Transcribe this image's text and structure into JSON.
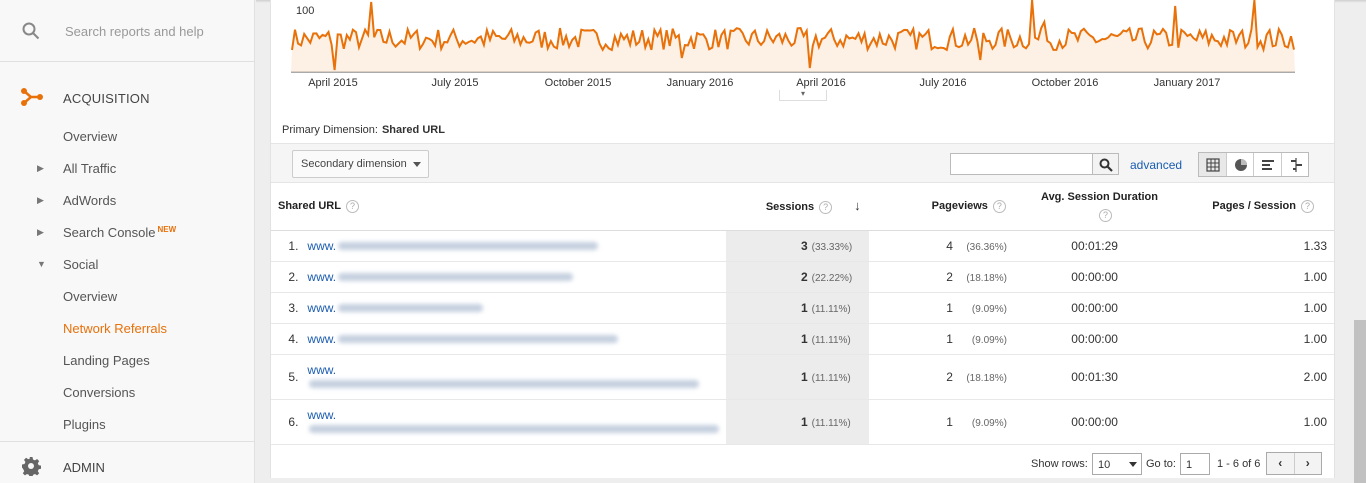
{
  "sidebar": {
    "search_placeholder": "Search reports and help",
    "section_title": "ACQUISITION",
    "items": [
      {
        "label": "Overview"
      },
      {
        "label": "All Traffic"
      },
      {
        "label": "AdWords"
      },
      {
        "label": "Search Console",
        "badge": "NEW"
      },
      {
        "label": "Social"
      },
      {
        "label": "Overview"
      },
      {
        "label": "Network Referrals"
      },
      {
        "label": "Landing Pages"
      },
      {
        "label": "Conversions"
      },
      {
        "label": "Plugins"
      }
    ],
    "admin_label": "ADMIN"
  },
  "chart_data": {
    "type": "line",
    "ytick": "100",
    "xticks": [
      "April 2015",
      "July 2015",
      "October 2015",
      "January 2016",
      "April 2016",
      "July 2016",
      "October 2016",
      "January 2017"
    ],
    "color": "#e8710a"
  },
  "report": {
    "primary_dimension_label": "Primary Dimension:",
    "primary_dimension_value": "Shared URL",
    "secondary_dimension_label": "Secondary dimension",
    "advanced_label": "advanced",
    "columns": {
      "url": "Shared URL",
      "sessions": "Sessions",
      "pageviews": "Pageviews",
      "duration": "Avg. Session Duration",
      "pages_per_session": "Pages / Session"
    },
    "help_glyph": "?",
    "rows": [
      {
        "idx": "1.",
        "url": "www.",
        "sessions": "3",
        "sessions_pct": "(33.33%)",
        "pageviews": "4",
        "pageviews_pct": "(36.36%)",
        "duration": "00:01:29",
        "pps": "1.33"
      },
      {
        "idx": "2.",
        "url": "www.",
        "sessions": "2",
        "sessions_pct": "(22.22%)",
        "pageviews": "2",
        "pageviews_pct": "(18.18%)",
        "duration": "00:00:00",
        "pps": "1.00"
      },
      {
        "idx": "3.",
        "url": "www.",
        "sessions": "1",
        "sessions_pct": "(11.11%)",
        "pageviews": "1",
        "pageviews_pct": "(9.09%)",
        "duration": "00:00:00",
        "pps": "1.00"
      },
      {
        "idx": "4.",
        "url": "www.",
        "sessions": "1",
        "sessions_pct": "(11.11%)",
        "pageviews": "1",
        "pageviews_pct": "(9.09%)",
        "duration": "00:00:00",
        "pps": "1.00"
      },
      {
        "idx": "5.",
        "url": "www.",
        "sessions": "1",
        "sessions_pct": "(11.11%)",
        "pageviews": "2",
        "pageviews_pct": "(18.18%)",
        "duration": "00:01:30",
        "pps": "2.00"
      },
      {
        "idx": "6.",
        "url": "www.",
        "sessions": "1",
        "sessions_pct": "(11.11%)",
        "pageviews": "1",
        "pageviews_pct": "(9.09%)",
        "duration": "00:00:00",
        "pps": "1.00"
      }
    ],
    "footer": {
      "show_rows_label": "Show rows:",
      "show_rows_value": "10",
      "goto_label": "Go to:",
      "goto_value": "1",
      "range": "1 - 6 of 6",
      "prev": "‹",
      "next": "›"
    }
  }
}
